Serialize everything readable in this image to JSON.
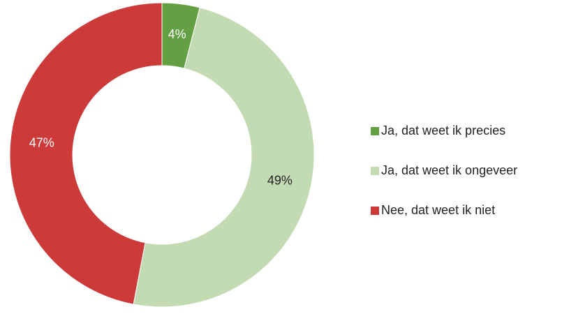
{
  "chart_data": {
    "type": "donut",
    "categories": [
      "Ja, dat weet ik precies",
      "Ja, dat weet ik ongeveer",
      "Nee, dat weet ik niet"
    ],
    "values": [
      4,
      49,
      47
    ],
    "value_labels": [
      "4%",
      "49%",
      "47%"
    ],
    "colors": [
      "#62a043",
      "#c3dbb3",
      "#cc3a3a"
    ],
    "legend": "right"
  }
}
